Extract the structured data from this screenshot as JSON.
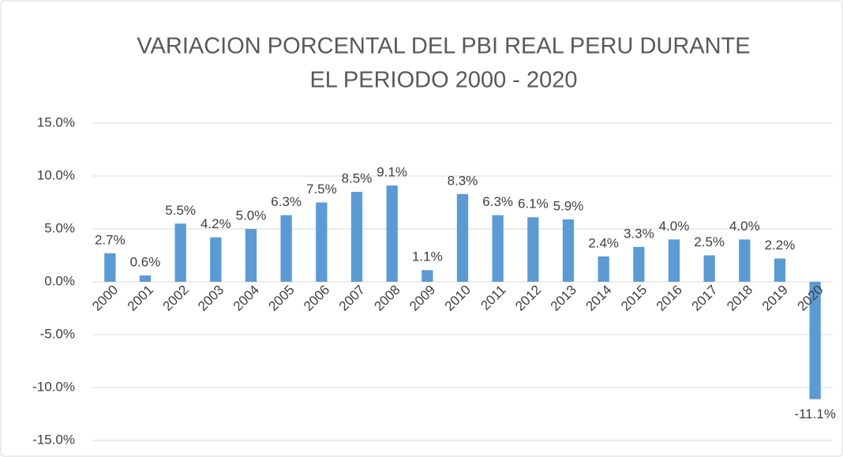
{
  "chart_data": {
    "type": "bar",
    "title": [
      "VARIACION PORCENTAL DEL PBI REAL  PERU DURANTE",
      "EL PERIODO 2000 - 2020"
    ],
    "categories": [
      "2000",
      "2001",
      "2002",
      "2003",
      "2004",
      "2005",
      "2006",
      "2007",
      "2008",
      "2009",
      "2010",
      "2011",
      "2012",
      "2013",
      "2014",
      "2015",
      "2016",
      "2017",
      "2018",
      "2019",
      "2020"
    ],
    "values": [
      2.7,
      0.6,
      5.5,
      4.2,
      5.0,
      6.3,
      7.5,
      8.5,
      9.1,
      1.1,
      8.3,
      6.3,
      6.1,
      5.9,
      2.4,
      3.3,
      4.0,
      2.5,
      4.0,
      2.2,
      -11.1
    ],
    "value_labels": [
      "2.7%",
      "0.6%",
      "5.5%",
      "4.2%",
      "5.0%",
      "6.3%",
      "7.5%",
      "8.5%",
      "9.1%",
      "1.1%",
      "8.3%",
      "6.3%",
      "6.1%",
      "5.9%",
      "2.4%",
      "3.3%",
      "4.0%",
      "2.5%",
      "4.0%",
      "2.2%",
      "-11.1%"
    ],
    "color": "#5b9bd5",
    "ylim": [
      -15,
      15
    ],
    "yticks": [
      {
        "value": -15,
        "label": "-15.0%"
      },
      {
        "value": -10,
        "label": "-10.0%"
      },
      {
        "value": -5,
        "label": "-5.0%"
      },
      {
        "value": 0,
        "label": "0.0%"
      },
      {
        "value": 5,
        "label": "5.0%"
      },
      {
        "value": 10,
        "label": "10.0%"
      },
      {
        "value": 15,
        "label": "15.0%"
      }
    ],
    "grid": true
  }
}
